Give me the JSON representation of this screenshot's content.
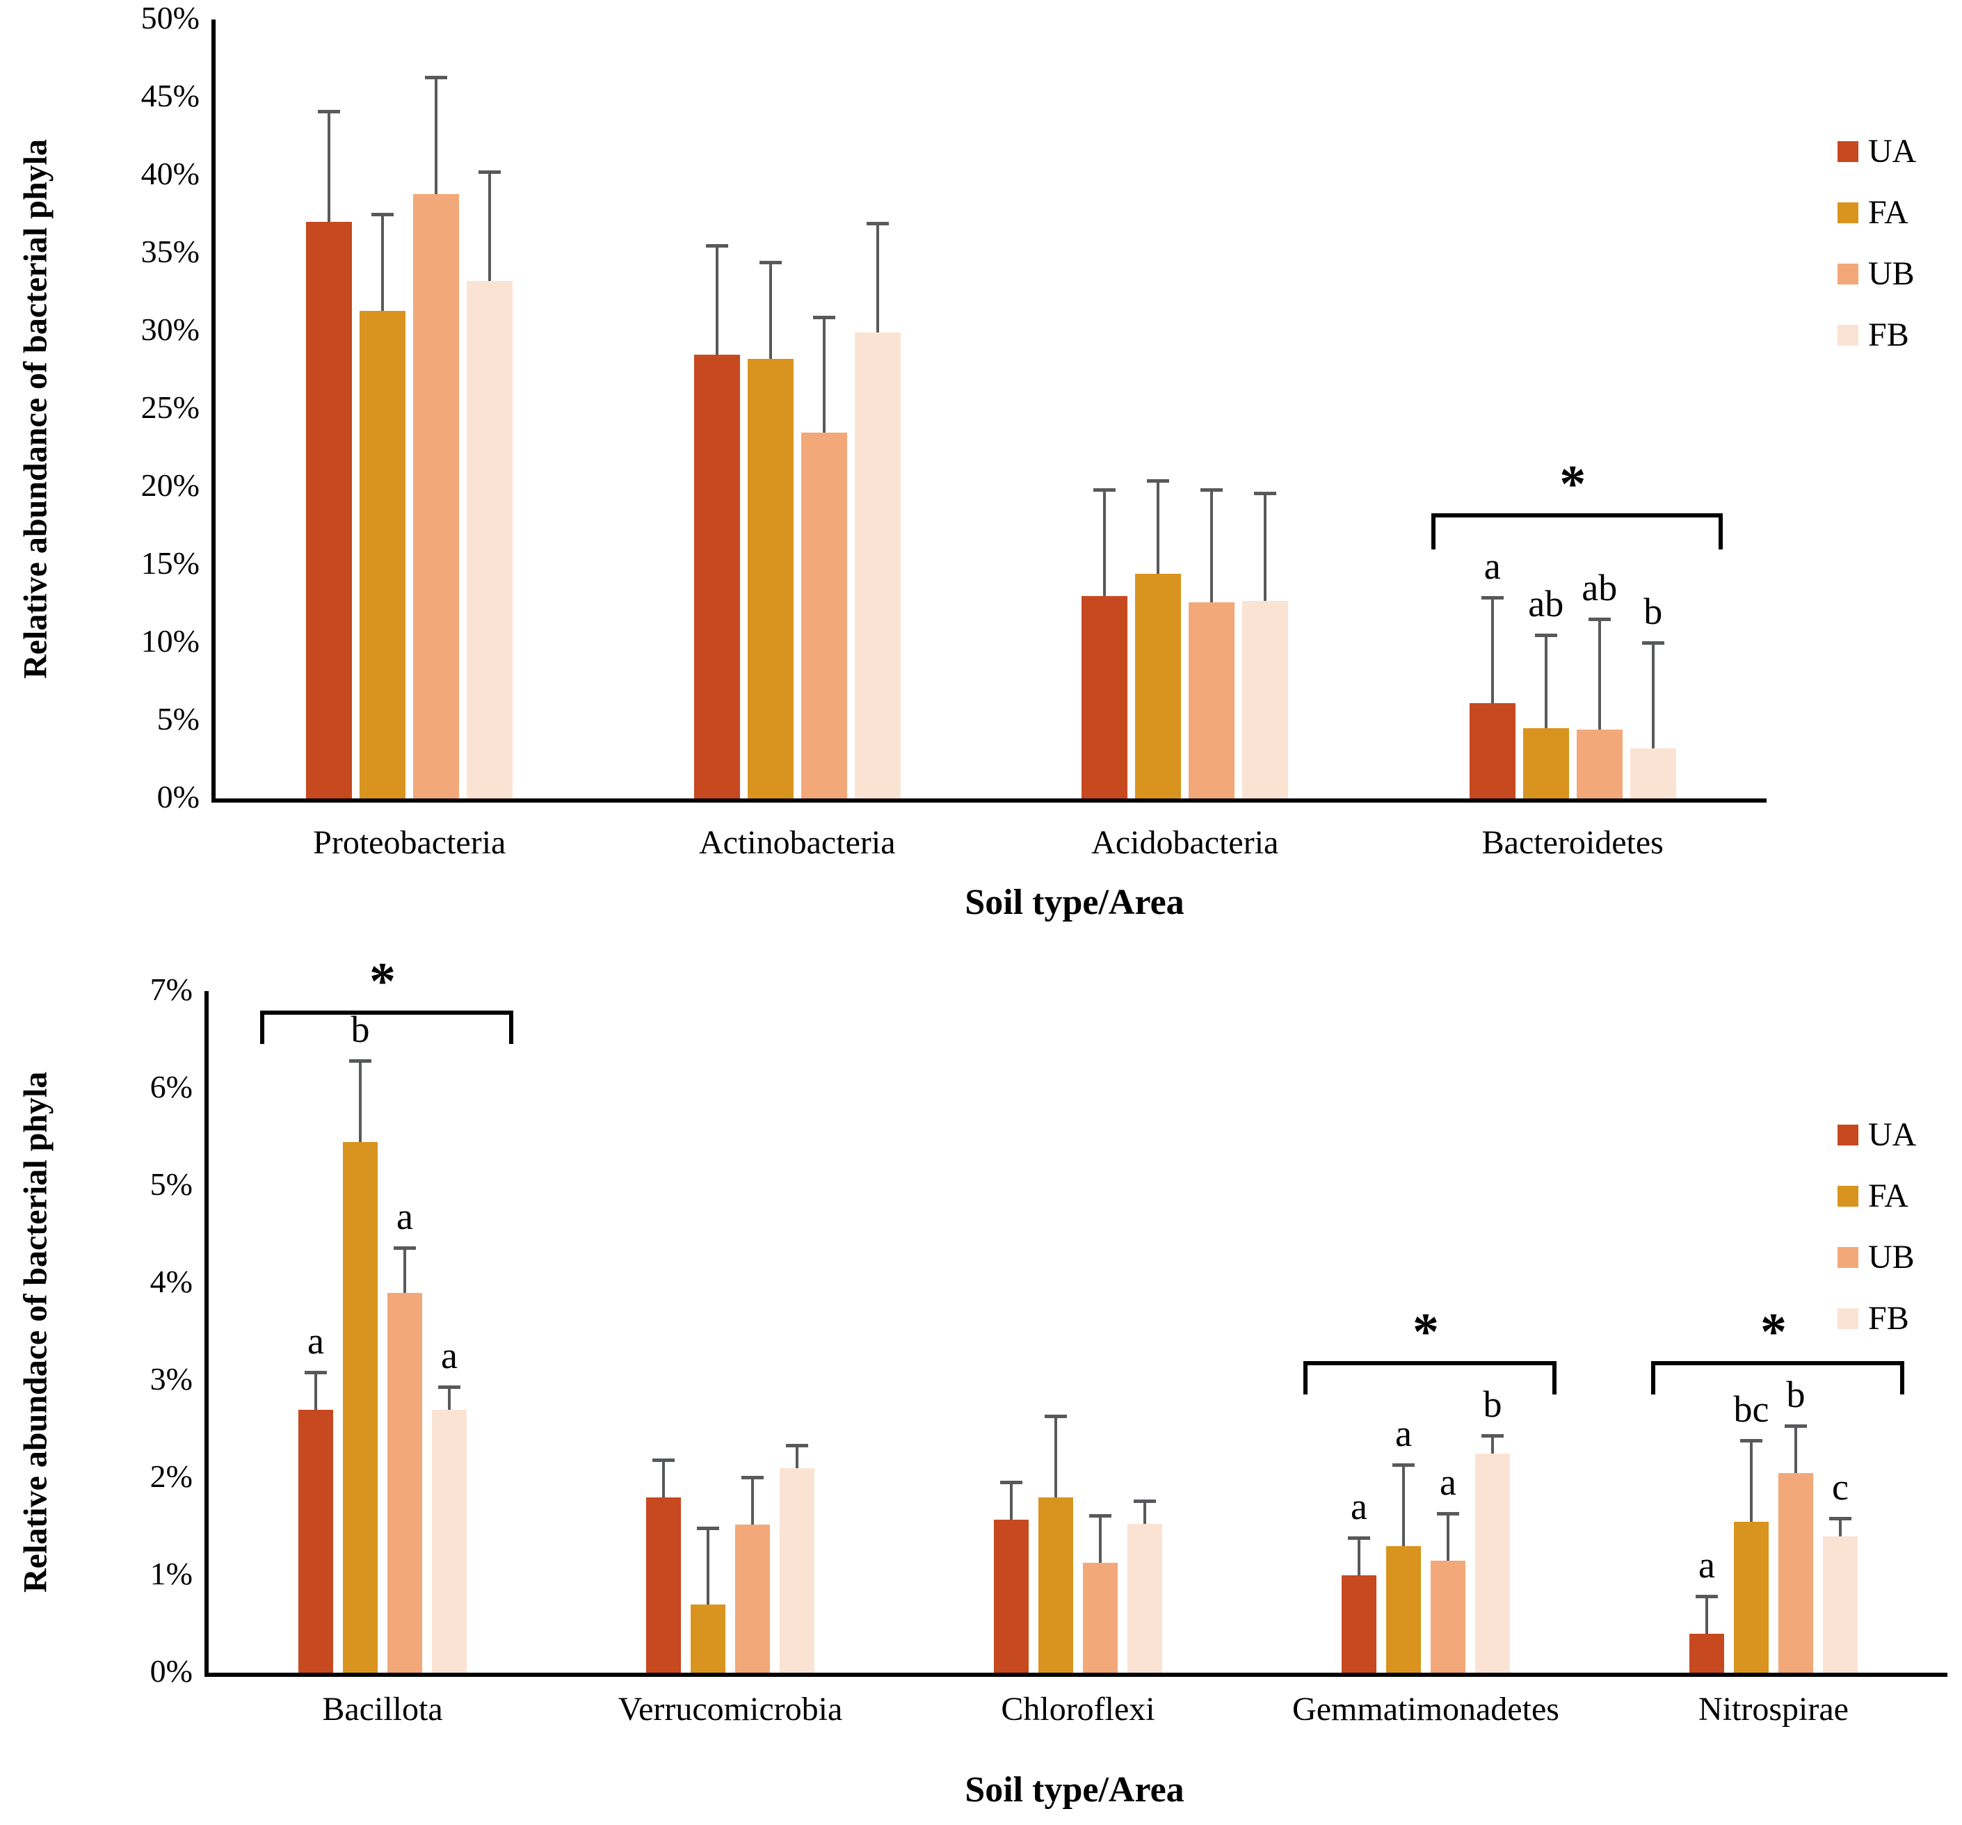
{
  "figure": {
    "background": "#ffffff",
    "error_bar_color": "#58595B",
    "axis_color": "#000000"
  },
  "legend": {
    "position": "right",
    "items": [
      {
        "label": "UA",
        "color": "#C7491F"
      },
      {
        "label": "FA",
        "color": "#D8941F"
      },
      {
        "label": "UB",
        "color": "#F2A878"
      },
      {
        "label": "FB",
        "color": "#FBE3D4"
      }
    ]
  },
  "chart_data": [
    {
      "type": "bar",
      "title": "",
      "ylabel": "Relative abundance of bacterial phyla",
      "xlabel": "Soil type/Area",
      "ylim": [
        0,
        50
      ],
      "ytick_step": 5,
      "yticks": [
        "0%",
        "5%",
        "10%",
        "15%",
        "20%",
        "25%",
        "30%",
        "35%",
        "40%",
        "45%",
        "50%"
      ],
      "grid": false,
      "legend_position": "right",
      "categories": [
        "Proteobacteria",
        "Actinobacteria",
        "Acidobacteria",
        "Bacteroidetes"
      ],
      "series": [
        {
          "name": "UA",
          "color": "#C7491F",
          "values": [
            37.0,
            28.5,
            13.0,
            6.1
          ],
          "errors": [
            7.2,
            7.1,
            6.9,
            6.9
          ]
        },
        {
          "name": "FA",
          "color": "#D8941F",
          "values": [
            31.3,
            28.2,
            14.4,
            4.5
          ],
          "errors": [
            6.3,
            6.3,
            6.1,
            6.1
          ]
        },
        {
          "name": "UB",
          "color": "#F2A878",
          "values": [
            38.8,
            23.5,
            12.6,
            4.4
          ],
          "errors": [
            7.6,
            7.5,
            7.3,
            7.2
          ]
        },
        {
          "name": "FB",
          "color": "#FBE3D4",
          "values": [
            33.2,
            29.9,
            12.7,
            3.2
          ],
          "errors": [
            7.1,
            7.1,
            7.0,
            6.9
          ]
        }
      ],
      "sig_letters": {
        "Bacteroidetes": [
          "a",
          "ab",
          "ab",
          "b"
        ]
      },
      "brackets": [
        {
          "category": "Bacteroidetes",
          "y_value": 18.3,
          "symbol": "*"
        }
      ]
    },
    {
      "type": "bar",
      "title": "",
      "ylabel": "Relative abundace of bacterial phyla",
      "xlabel": "Soil type/Area",
      "ylim": [
        0,
        7
      ],
      "ytick_step": 1,
      "yticks": [
        "0%",
        "1%",
        "2%",
        "3%",
        "4%",
        "5%",
        "6%",
        "7%"
      ],
      "grid": false,
      "legend_position": "right",
      "categories": [
        "Bacillota",
        "Verrucomicrobia",
        "Chloroflexi",
        "Gemmatimonadetes",
        "Nitrospirae"
      ],
      "series": [
        {
          "name": "UA",
          "color": "#C7491F",
          "values": [
            2.7,
            1.8,
            1.57,
            1.0,
            0.4
          ],
          "errors": [
            0.4,
            0.4,
            0.4,
            0.4,
            0.4
          ]
        },
        {
          "name": "FA",
          "color": "#D8941F",
          "values": [
            5.45,
            0.7,
            1.8,
            1.3,
            1.55
          ],
          "errors": [
            0.85,
            0.8,
            0.85,
            0.85,
            0.85
          ]
        },
        {
          "name": "UB",
          "color": "#F2A878",
          "values": [
            3.9,
            1.52,
            1.13,
            1.15,
            2.05
          ],
          "errors": [
            0.48,
            0.5,
            0.5,
            0.5,
            0.5
          ]
        },
        {
          "name": "FB",
          "color": "#FBE3D4",
          "values": [
            2.7,
            2.1,
            1.53,
            2.25,
            1.4
          ],
          "errors": [
            0.25,
            0.25,
            0.25,
            0.2,
            0.2
          ]
        }
      ],
      "sig_letters": {
        "Bacillota": [
          "a",
          "b",
          "a",
          "a"
        ],
        "Gemmatimonadetes": [
          "a",
          "a",
          "a",
          "b"
        ],
        "Nitrospirae": [
          "a",
          "bc",
          "b",
          "c"
        ]
      },
      "brackets": [
        {
          "category": "Bacillota",
          "y_value": 6.8,
          "symbol": "*"
        },
        {
          "category": "Gemmatimonadetes",
          "y_value": 3.2,
          "symbol": "*"
        },
        {
          "category": "Nitrospirae",
          "y_value": 3.2,
          "symbol": "*"
        }
      ]
    }
  ]
}
